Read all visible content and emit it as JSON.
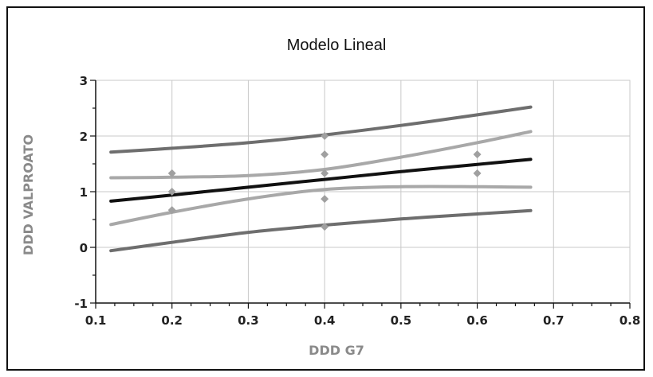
{
  "chart_data": {
    "type": "line",
    "title": "Modelo Lineal",
    "xlabel": "DDD G7",
    "ylabel": "DDD VALPROATO",
    "xlim": [
      0.1,
      0.8
    ],
    "ylim": [
      -1,
      3
    ],
    "xticks": [
      "0.1",
      "0.2",
      "0.3",
      "0.4",
      "0.5",
      "0.6",
      "0.7",
      "0.8"
    ],
    "yticks": [
      "-1",
      "0",
      "1",
      "2",
      "3"
    ],
    "grid": true,
    "legend": "none",
    "colors": {
      "fit": "#111111",
      "confidence": "#a8a8a8",
      "prediction": "#6e6e6e",
      "points": "#a0a0a0",
      "grid": "#c8c8c8"
    },
    "series": [
      {
        "x": [
          0.12,
          0.2,
          0.3,
          0.4,
          0.5,
          0.6,
          0.67
        ],
        "y": [
          0.83,
          0.94,
          1.08,
          1.22,
          1.36,
          1.49,
          1.58
        ]
      },
      {
        "x": [
          0.12,
          0.2,
          0.3,
          0.4,
          0.5,
          0.6,
          0.67
        ],
        "y": [
          1.25,
          1.26,
          1.29,
          1.4,
          1.62,
          1.88,
          2.08
        ]
      },
      {
        "x": [
          0.12,
          0.2,
          0.3,
          0.4,
          0.5,
          0.6,
          0.67
        ],
        "y": [
          0.41,
          0.63,
          0.87,
          1.04,
          1.09,
          1.09,
          1.08
        ]
      },
      {
        "x": [
          0.12,
          0.2,
          0.3,
          0.4,
          0.5,
          0.6,
          0.67
        ],
        "y": [
          1.71,
          1.78,
          1.88,
          2.02,
          2.19,
          2.38,
          2.52
        ]
      },
      {
        "x": [
          0.12,
          0.2,
          0.3,
          0.4,
          0.5,
          0.6,
          0.67
        ],
        "y": [
          -0.06,
          0.09,
          0.27,
          0.4,
          0.51,
          0.6,
          0.66
        ]
      }
    ],
    "points": {
      "x": [
        0.2,
        0.2,
        0.2,
        0.4,
        0.4,
        0.4,
        0.4,
        0.4,
        0.6,
        0.6
      ],
      "y": [
        1.33,
        1.0,
        0.67,
        2.0,
        1.67,
        1.33,
        0.87,
        0.37,
        1.67,
        1.33
      ]
    }
  }
}
